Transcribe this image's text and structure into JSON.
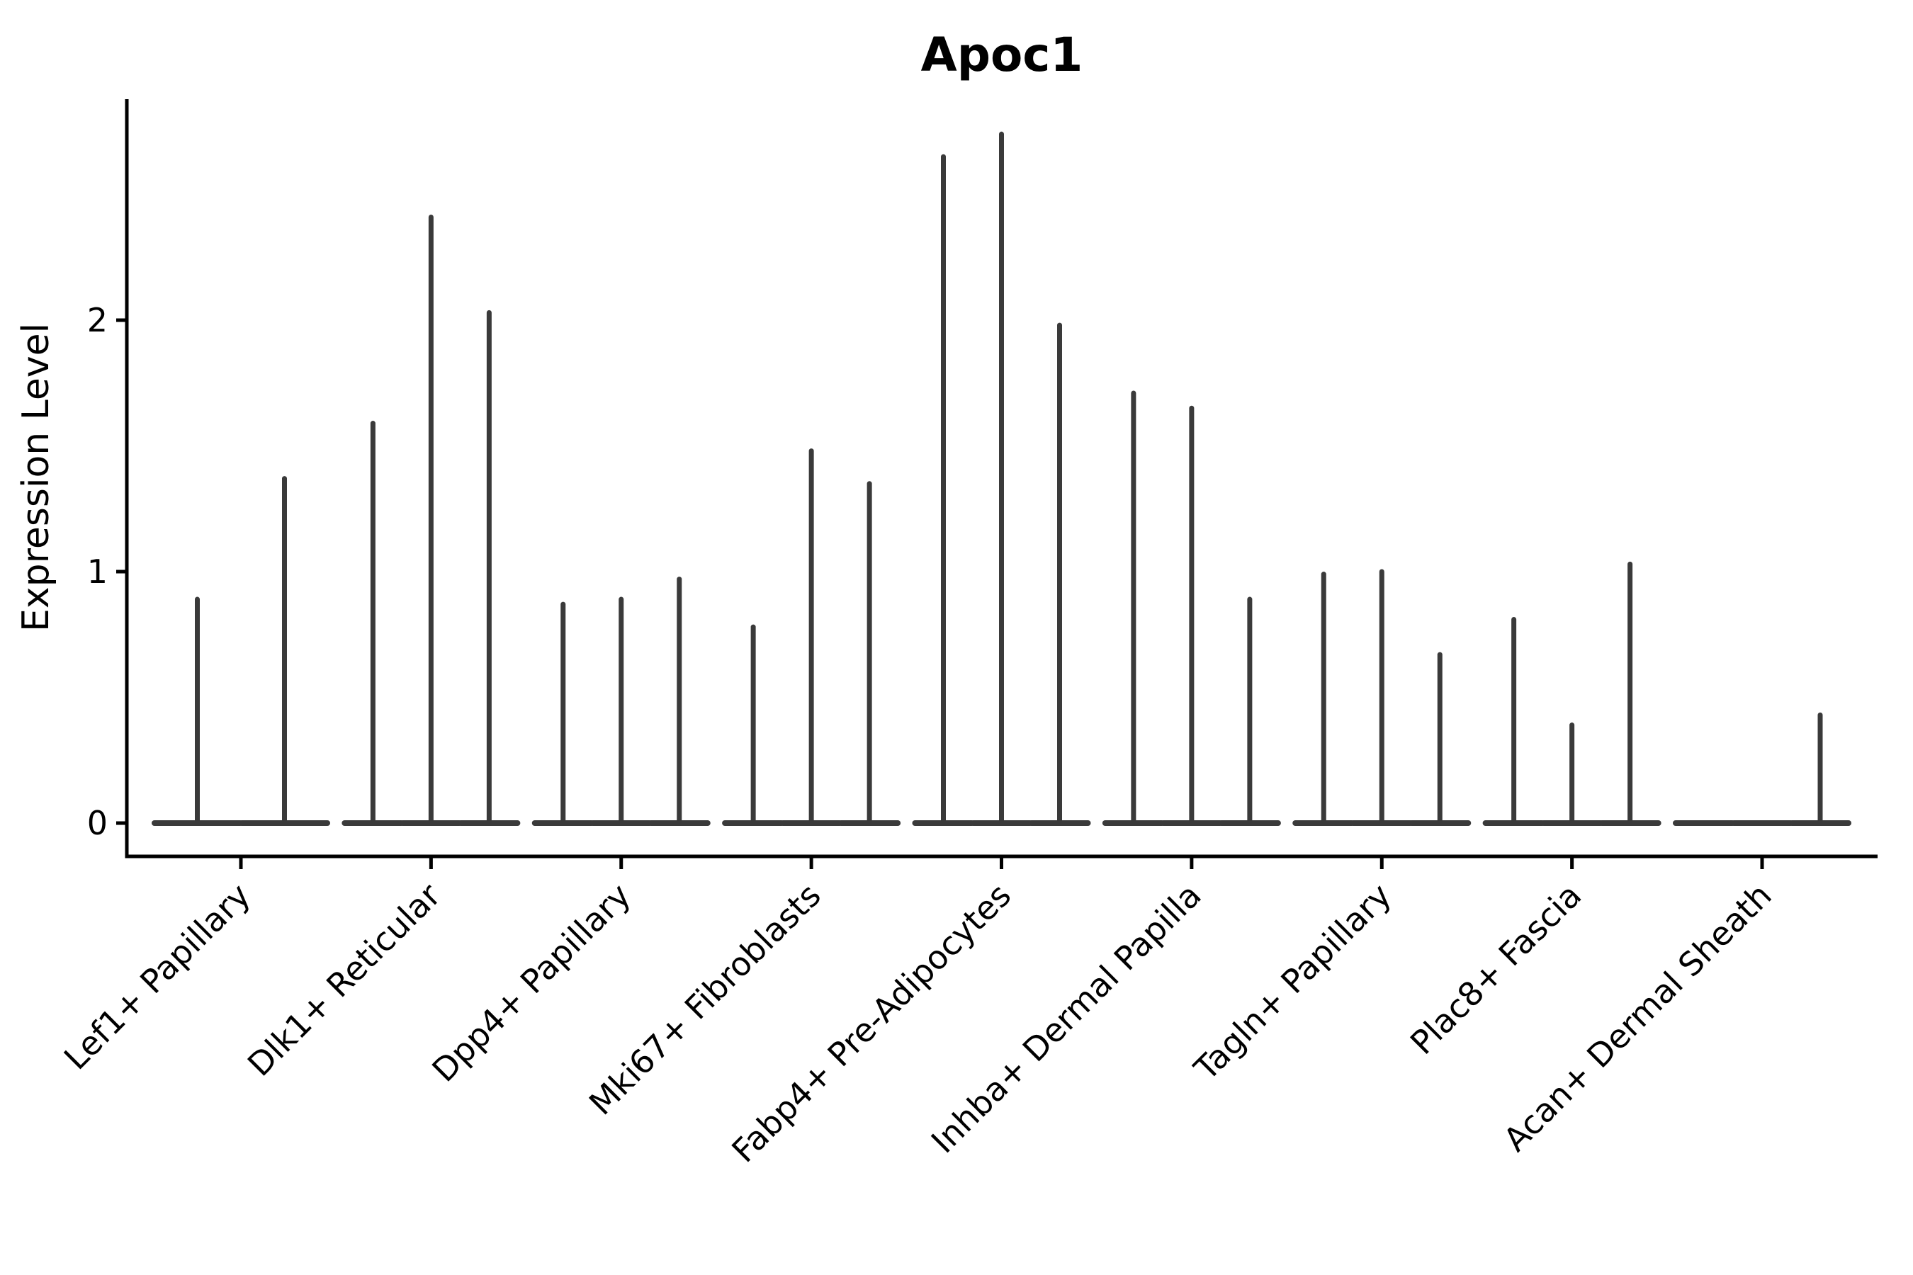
{
  "title": "Apoc1",
  "y_axis": {
    "label": "Expression Level",
    "ticks": [
      "0",
      "1",
      "2"
    ],
    "tick_values": [
      0,
      1,
      2
    ]
  },
  "x_axis": {
    "categories": [
      "Lef1+ Papillary",
      "Dlk1+ Reticular",
      "Dpp4+ Papillary",
      "Mki67+ Fibroblasts",
      "Fabp4+ Pre-Adipocytes",
      "Inhba+ Dermal Papilla",
      "Tagln+ Papillary",
      "Plac8+ Fascia",
      "Acan+ Dermal Sheath"
    ]
  },
  "colors": {
    "violin": "#3a3a3a",
    "axis": "#000000"
  },
  "chart_data": {
    "type": "violin",
    "style": "spike-violin (mostly-zero distributions collapsed to a flat base at 0 with a thin spike up to the max value)",
    "title": "Apoc1",
    "xlabel": "",
    "ylabel": "Expression Level",
    "ylim": [
      0,
      2.88
    ],
    "yticks": [
      0,
      1,
      2
    ],
    "grid": false,
    "legend": false,
    "groups": [
      {
        "label": "Lef1+ Papillary",
        "violin_maxima": [
          0.89,
          1.37
        ]
      },
      {
        "label": "Dlk1+ Reticular",
        "violin_maxima": [
          1.59,
          2.41,
          2.03
        ]
      },
      {
        "label": "Dpp4+ Papillary",
        "violin_maxima": [
          0.87,
          0.89,
          0.97
        ]
      },
      {
        "label": "Mki67+ Fibroblasts",
        "violin_maxima": [
          0.78,
          1.48,
          1.35
        ]
      },
      {
        "label": "Fabp4+ Pre-Adipocytes",
        "violin_maxima": [
          2.65,
          2.74,
          1.98
        ]
      },
      {
        "label": "Inhba+ Dermal Papilla",
        "violin_maxima": [
          1.71,
          1.65,
          0.89
        ]
      },
      {
        "label": "Tagln+ Papillary",
        "violin_maxima": [
          0.99,
          1.0,
          0.67
        ]
      },
      {
        "label": "Plac8+ Fascia",
        "violin_maxima": [
          0.81,
          0.39,
          1.03
        ]
      },
      {
        "label": "Acan+ Dermal Sheath",
        "violin_maxima": [
          0.0,
          0.0,
          0.43
        ]
      }
    ]
  }
}
